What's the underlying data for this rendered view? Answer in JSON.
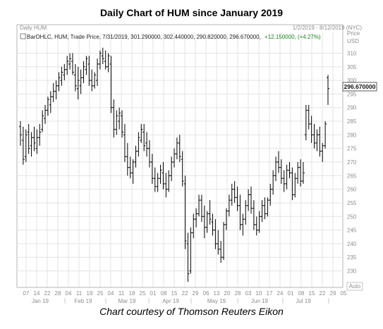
{
  "header": {
    "title": "Daily Chart of HUM since January 2019",
    "caption": "Chart courtesy of Thomson Reuters Eikon"
  },
  "chart_data": {
    "type": "ohlc",
    "window_label": "Daily HUM",
    "date_range_label": "1/2/2019 - 8/12/2019 (NYC)",
    "legend": {
      "prefix": "BarOHLC, HUM, Trade Price, 7/31/2019, 301.290000, 302.440000, 290.820000, 296.670000,",
      "change": "+12.150000, (+4.27%)",
      "change_color": "#1a8a1a"
    },
    "price_axis": {
      "header": "Price",
      "unit": "USD",
      "ticks": [
        310,
        305,
        300,
        295,
        290,
        285,
        280,
        275,
        270,
        265,
        260,
        255,
        250,
        245,
        240,
        235,
        230
      ],
      "ylim": [
        226,
        314
      ],
      "auto_label": "Auto"
    },
    "last_price_label": "296.670000",
    "x_axis": {
      "day_ticks": [
        "07",
        "14",
        "22",
        "28",
        "04",
        "11",
        "19",
        "25",
        "04",
        "11",
        "18",
        "25",
        "01",
        "08",
        "15",
        "22",
        "29",
        "06",
        "13",
        "20",
        "28",
        "03",
        "10",
        "17",
        "24",
        "01",
        "08",
        "15",
        "22",
        "29",
        "05"
      ],
      "months": [
        "Jan 19",
        "Feb 19",
        "Mar 19",
        "Apr 19",
        "May 19",
        "Jun 19",
        "Jul 19"
      ]
    },
    "grid": true,
    "bar_color": "#000000",
    "up_color": "#1a8a1a",
    "ohlc": [
      [
        283,
        285,
        276,
        280
      ],
      [
        278,
        283,
        269,
        271
      ],
      [
        272,
        282,
        270,
        280
      ],
      [
        281,
        284,
        273,
        275
      ],
      [
        276,
        281,
        272,
        279
      ],
      [
        279,
        283,
        274,
        277
      ],
      [
        275,
        282,
        273,
        279
      ],
      [
        279,
        284,
        276,
        281
      ],
      [
        282,
        289,
        281,
        287
      ],
      [
        286,
        291,
        284,
        289
      ],
      [
        289,
        294,
        287,
        293
      ],
      [
        291,
        296,
        288,
        294
      ],
      [
        294,
        299,
        292,
        296
      ],
      [
        296,
        300,
        293,
        298
      ],
      [
        298,
        303,
        296,
        301
      ],
      [
        300,
        305,
        298,
        303
      ],
      [
        302,
        306,
        300,
        304
      ],
      [
        304,
        309,
        302,
        307
      ],
      [
        306,
        310,
        304,
        308
      ],
      [
        307,
        310,
        302,
        303
      ],
      [
        302,
        306,
        296,
        298
      ],
      [
        297,
        305,
        293,
        300
      ],
      [
        298,
        304,
        295,
        301
      ],
      [
        301,
        307,
        299,
        305
      ],
      [
        304,
        309,
        302,
        308
      ],
      [
        306,
        309,
        298,
        300
      ],
      [
        300,
        304,
        296,
        298
      ],
      [
        298,
        303,
        297,
        302
      ],
      [
        300,
        308,
        298,
        306
      ],
      [
        306,
        311,
        304,
        310
      ],
      [
        309,
        312,
        306,
        308
      ],
      [
        307,
        311,
        304,
        305
      ],
      [
        305,
        310,
        303,
        309
      ],
      [
        306,
        309,
        288,
        290
      ],
      [
        290,
        293,
        279,
        282
      ],
      [
        282,
        289,
        280,
        287
      ],
      [
        285,
        290,
        282,
        288
      ],
      [
        287,
        289,
        279,
        281
      ],
      [
        280,
        284,
        270,
        272
      ],
      [
        272,
        277,
        265,
        268
      ],
      [
        268,
        272,
        264,
        266
      ],
      [
        266,
        271,
        262,
        270
      ],
      [
        270,
        276,
        268,
        274
      ],
      [
        274,
        281,
        272,
        279
      ],
      [
        278,
        284,
        277,
        282
      ],
      [
        281,
        284,
        274,
        276
      ],
      [
        277,
        281,
        272,
        275
      ],
      [
        275,
        278,
        268,
        270
      ],
      [
        270,
        273,
        262,
        264
      ],
      [
        264,
        268,
        259,
        261
      ],
      [
        261,
        266,
        259,
        264
      ],
      [
        264,
        269,
        262,
        267
      ],
      [
        266,
        270,
        260,
        262
      ],
      [
        262,
        266,
        257,
        260
      ],
      [
        260,
        267,
        259,
        265
      ],
      [
        265,
        272,
        263,
        270
      ],
      [
        270,
        275,
        268,
        273
      ],
      [
        273,
        279,
        271,
        277
      ],
      [
        277,
        280,
        270,
        272
      ],
      [
        271,
        274,
        261,
        263
      ],
      [
        262,
        265,
        238,
        241
      ],
      [
        240,
        244,
        226,
        229
      ],
      [
        230,
        246,
        229,
        244
      ],
      [
        244,
        251,
        242,
        249
      ],
      [
        249,
        253,
        246,
        251
      ],
      [
        251,
        258,
        250,
        256
      ],
      [
        256,
        258,
        248,
        250
      ],
      [
        250,
        254,
        242,
        246
      ],
      [
        246,
        252,
        244,
        251
      ],
      [
        251,
        256,
        247,
        249
      ],
      [
        248,
        251,
        243,
        245
      ],
      [
        245,
        249,
        238,
        240
      ],
      [
        240,
        245,
        236,
        238
      ],
      [
        238,
        241,
        233,
        235
      ],
      [
        235,
        248,
        234,
        247
      ],
      [
        247,
        253,
        245,
        252
      ],
      [
        252,
        258,
        250,
        256
      ],
      [
        256,
        262,
        254,
        260
      ],
      [
        260,
        263,
        255,
        257
      ],
      [
        257,
        261,
        252,
        254
      ],
      [
        254,
        258,
        245,
        247
      ],
      [
        247,
        251,
        243,
        249
      ],
      [
        249,
        256,
        247,
        254
      ],
      [
        254,
        260,
        252,
        258
      ],
      [
        258,
        261,
        251,
        253
      ],
      [
        253,
        256,
        245,
        247
      ],
      [
        247,
        250,
        243,
        245
      ],
      [
        245,
        252,
        244,
        250
      ],
      [
        250,
        256,
        248,
        254
      ],
      [
        254,
        257,
        249,
        251
      ],
      [
        251,
        257,
        250,
        256
      ],
      [
        256,
        262,
        254,
        260
      ],
      [
        260,
        267,
        258,
        265
      ],
      [
        265,
        272,
        263,
        270
      ],
      [
        270,
        274,
        266,
        268
      ],
      [
        268,
        271,
        262,
        264
      ],
      [
        264,
        267,
        259,
        262
      ],
      [
        262,
        269,
        260,
        267
      ],
      [
        267,
        270,
        264,
        266
      ],
      [
        266,
        268,
        256,
        258
      ],
      [
        258,
        266,
        257,
        264
      ],
      [
        264,
        270,
        262,
        268
      ],
      [
        268,
        271,
        261,
        263
      ],
      [
        263,
        270,
        262,
        266
      ],
      [
        280,
        291,
        278,
        289
      ],
      [
        289,
        291,
        282,
        284
      ],
      [
        284,
        287,
        277,
        280
      ],
      [
        280,
        284,
        275,
        277
      ],
      [
        277,
        282,
        274,
        280
      ],
      [
        280,
        283,
        272,
        274
      ],
      [
        274,
        277,
        270,
        276
      ],
      [
        276,
        285,
        275,
        284
      ],
      [
        301,
        302,
        291,
        297
      ]
    ]
  }
}
